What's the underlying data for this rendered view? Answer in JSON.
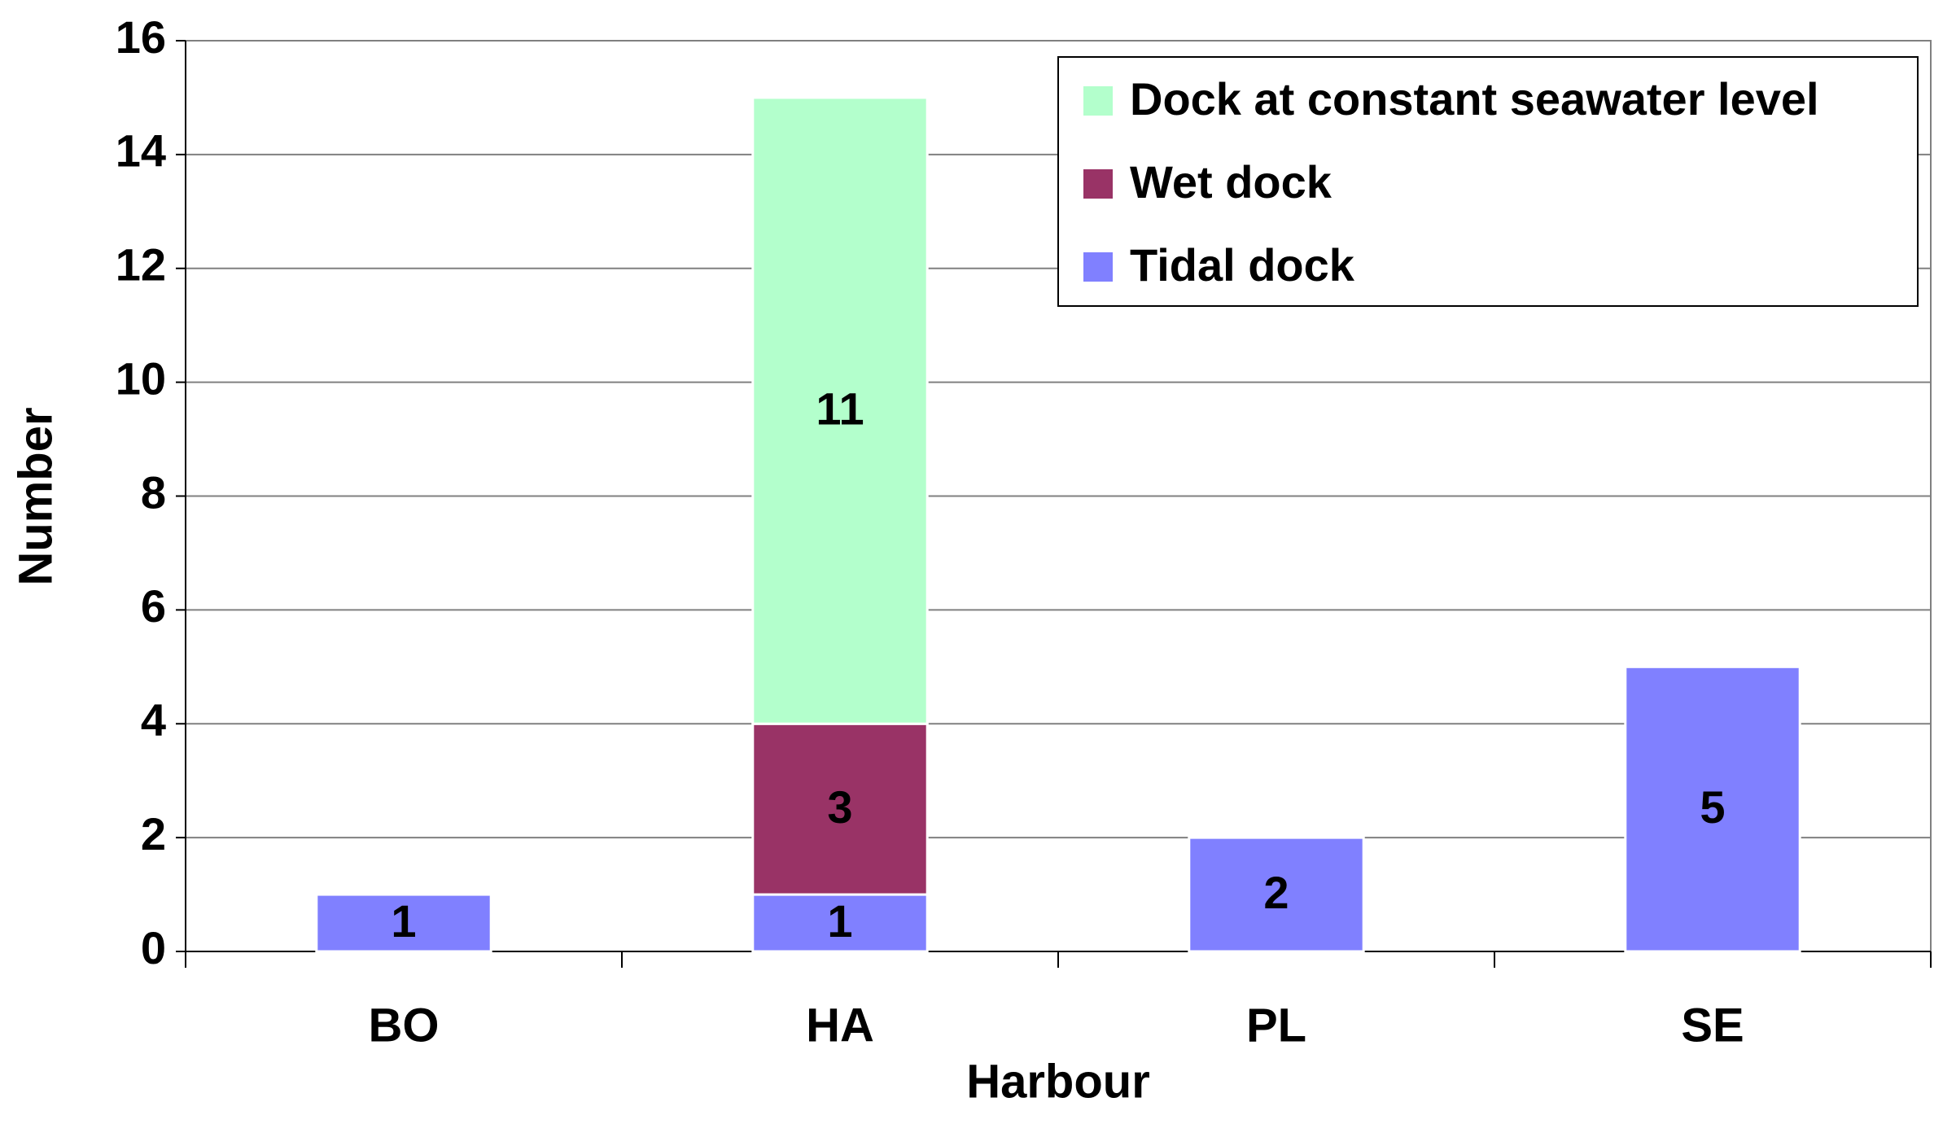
{
  "chart_data": {
    "type": "bar",
    "stacked": true,
    "x_label": "Harbour",
    "y_label": "Number",
    "categories": [
      "BO",
      "HA",
      "PL",
      "SE"
    ],
    "series": [
      {
        "name": "Tidal dock",
        "color": "#8080ff",
        "values": [
          1,
          1,
          2,
          5
        ]
      },
      {
        "name": "Wet dock",
        "color": "#993366",
        "values": [
          null,
          3,
          null,
          null
        ]
      },
      {
        "name": "Dock at constant seawater level",
        "color": "#b3ffcc",
        "values": [
          null,
          11,
          null,
          null
        ]
      }
    ],
    "ylim": [
      0,
      16
    ],
    "yticks": [
      0,
      2,
      4,
      6,
      8,
      10,
      12,
      14,
      16
    ],
    "grid": true,
    "legend": "upper right"
  }
}
